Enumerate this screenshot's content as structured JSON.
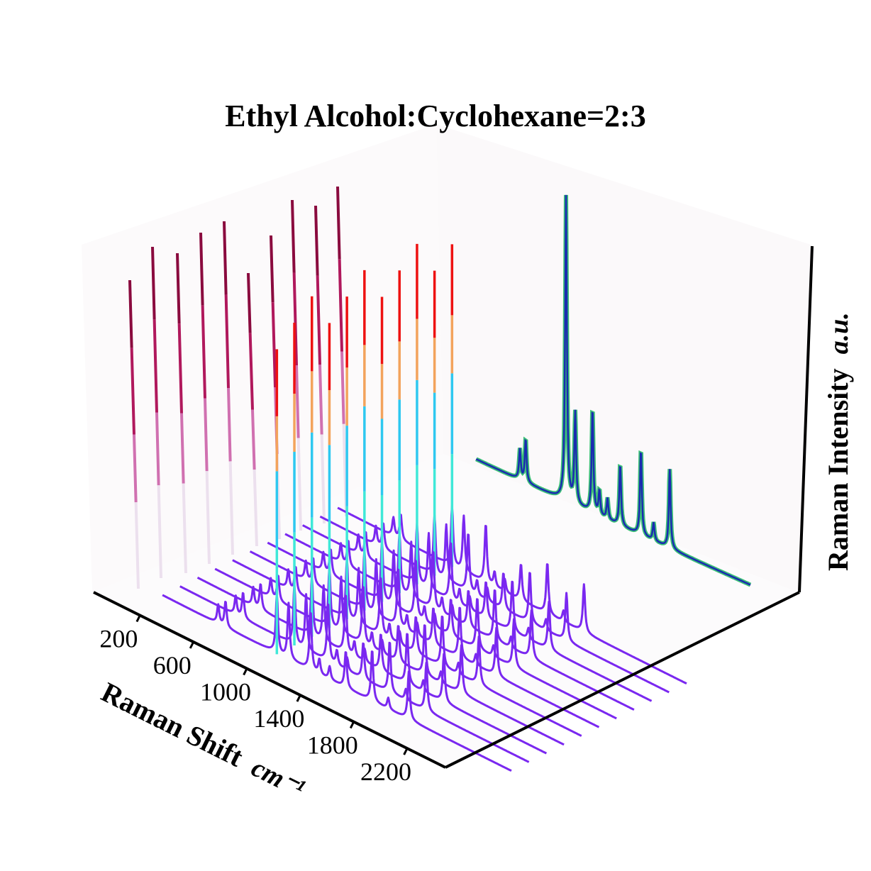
{
  "chart_data": {
    "type": "line",
    "title": "Ethyl Alcohol:Cyclohexane=2:3",
    "xlabel": "Raman Shift",
    "xlabel_unit": "cm⁻¹",
    "zlabel": "Raman Intensity",
    "zlabel_unit": "a.u.",
    "x_ticks": [
      "200",
      "600",
      "1000",
      "1400",
      "1800",
      "2200"
    ],
    "xlim": [
      0,
      2400
    ],
    "grid": false,
    "spectrum_count": 11,
    "peaks": [
      {
        "x": 400,
        "height": 0.1
      },
      {
        "x": 450,
        "height": 0.14
      },
      {
        "x": 800,
        "height": 1.0
      },
      {
        "x": 880,
        "height": 0.3
      },
      {
        "x": 1030,
        "height": 0.34
      },
      {
        "x": 1090,
        "height": 0.08
      },
      {
        "x": 1160,
        "height": 0.07
      },
      {
        "x": 1270,
        "height": 0.2
      },
      {
        "x": 1450,
        "height": 0.28
      },
      {
        "x": 1560,
        "height": 0.06
      },
      {
        "x": 1700,
        "height": 0.26
      }
    ],
    "colors": {
      "spectra": "#7a28f0",
      "projection": "#1a2bb0",
      "projection_outline": "#3cbf78",
      "peak_low": "#3fe8d8",
      "peak_mid": "#f3a35c",
      "peak_high": "#ee1111",
      "shadow": "#8a0a3e"
    }
  }
}
